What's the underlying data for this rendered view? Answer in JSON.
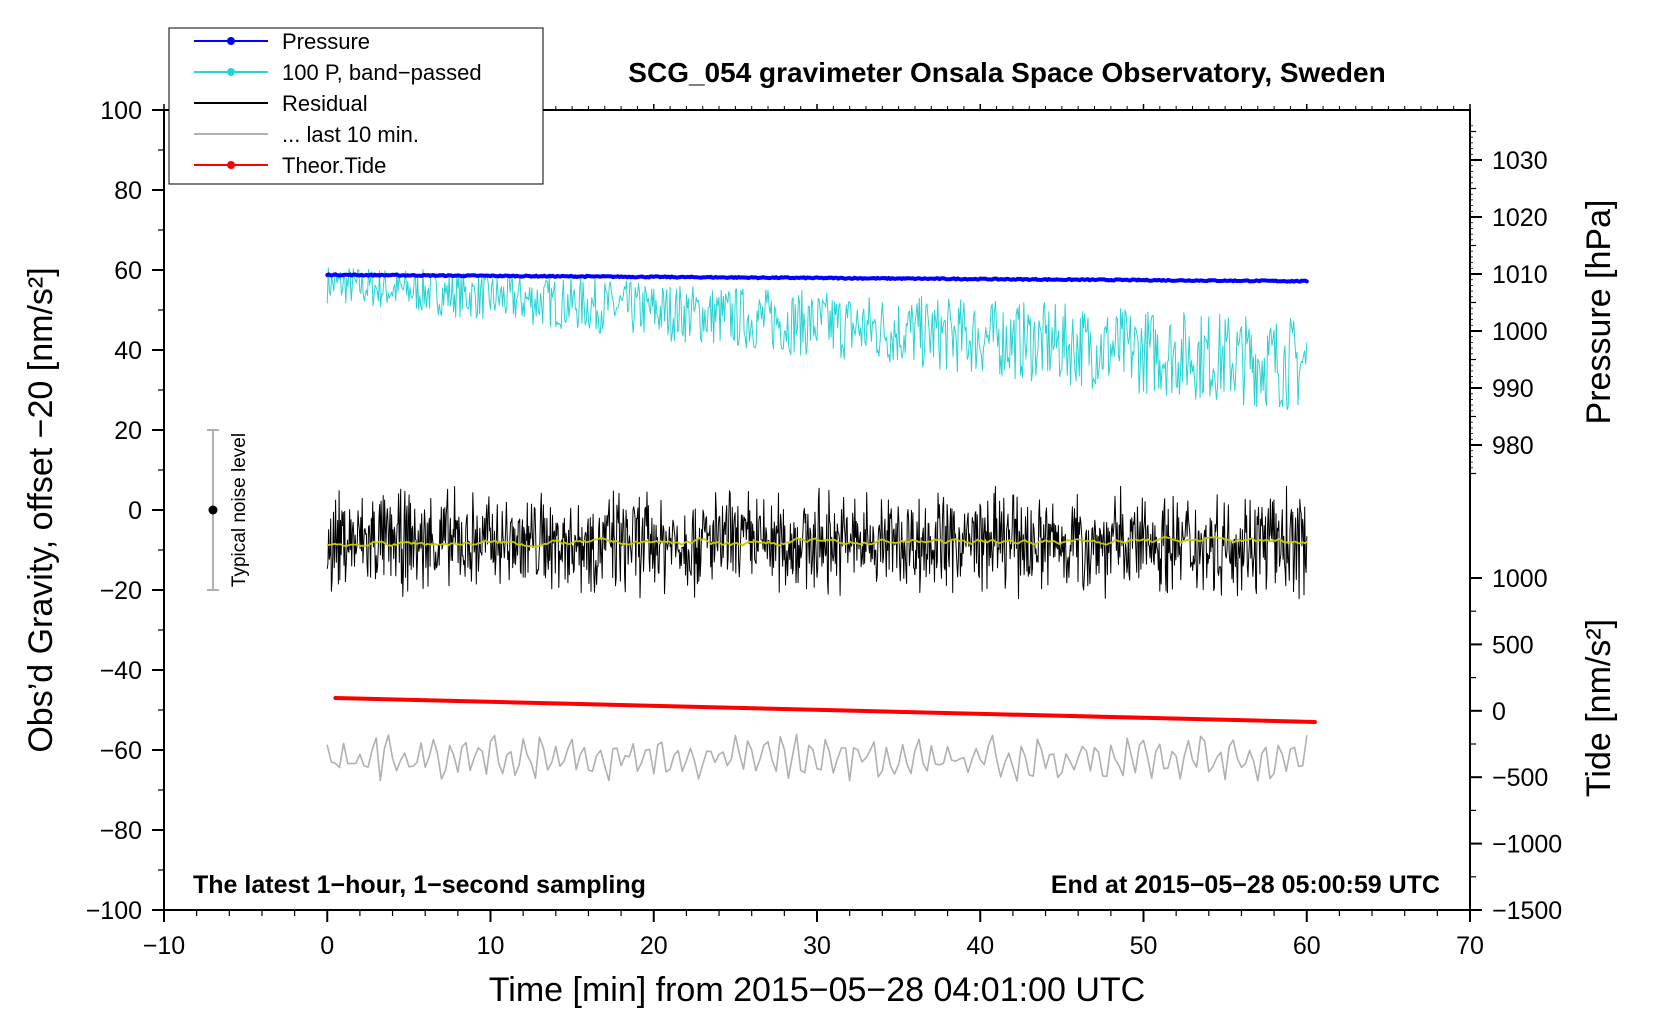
{
  "chart_data": {
    "type": "line",
    "title": "SCG_054 gravimeter Onsala Space Observatory, Sweden",
    "xlabel": "Time [min] from 2015−05−28 04:01:00 UTC",
    "ylabel_left": "Obs’d Gravity, offset −20 [nm/s²]",
    "ylabel_right_top": "Pressure [hPa]",
    "ylabel_right_bottom": "Tide [nm/s²]",
    "xlim": [
      -10,
      70
    ],
    "ylim_left": [
      -100,
      100
    ],
    "x_ticks": [
      -10,
      0,
      10,
      20,
      30,
      40,
      50,
      60,
      70
    ],
    "x_tick_labels": [
      "−10",
      "0",
      "10",
      "20",
      "30",
      "40",
      "50",
      "60",
      "70"
    ],
    "y_ticks_left": [
      100,
      80,
      60,
      40,
      20,
      0,
      -20,
      -40,
      -60,
      -80,
      -100
    ],
    "y_tick_labels_left": [
      "100",
      "80",
      "60",
      "40",
      "20",
      "0",
      "−20",
      "−40",
      "−60",
      "−80",
      "−100"
    ],
    "pressure_axis": {
      "ticks": [
        1030,
        1020,
        1010,
        1000,
        990,
        980
      ],
      "tick_labels": [
        "1030",
        "1020",
        "1010",
        "1000",
        "990",
        "980"
      ],
      "left_axis_reference": [
        [
          1010,
          59
        ],
        [
          990,
          30.5
        ]
      ]
    },
    "tide_axis": {
      "ticks": [
        1000,
        500,
        0,
        -500,
        -1000,
        -1500
      ],
      "tick_labels": [
        "1000",
        "500",
        "0",
        "−500",
        "−1000",
        "−1500"
      ],
      "left_axis_reference": [
        [
          1000,
          -17
        ],
        [
          -1500,
          -100
        ]
      ]
    },
    "legend": [
      {
        "label": "Pressure",
        "color": "#0000ff",
        "marker": true
      },
      {
        "label": "100 P, band−passed",
        "color": "#2ad3d3",
        "marker": true
      },
      {
        "label": "Residual",
        "color": "#000000",
        "marker": false
      },
      {
        "label": "... last 10 min.",
        "color": "#b0b0b0",
        "marker": false
      },
      {
        "label": "Theor.Tide",
        "color": "#ff0000",
        "marker": true
      }
    ],
    "series": [
      {
        "name": "Pressure",
        "color": "#0000ff",
        "x_start": 0,
        "x_end": 60,
        "y_start": 58.8,
        "y_end": 57.2,
        "noise": 0.3
      },
      {
        "name": "100 P, band−passed",
        "color": "#2ad3d3",
        "x_start": 0,
        "x_end": 60,
        "y_start": 58,
        "y_end": 40,
        "noise": 8
      },
      {
        "name": "Residual",
        "color": "#000000",
        "x_start": 0,
        "x_end": 60,
        "y_start": -8,
        "y_end": -8,
        "noise": 10
      },
      {
        "name": "Residual smoothed",
        "color": "#c8c800",
        "x_start": 0,
        "x_end": 60,
        "y_start": -8.5,
        "y_end": -7.5,
        "noise": 0.8
      },
      {
        "name": "... last 10 min.",
        "color": "#b0b0b0",
        "x_start": 0,
        "x_end": 60,
        "y_start": -62,
        "y_end": -62,
        "noise": 5
      },
      {
        "name": "Theor.Tide",
        "color": "#ff0000",
        "x_start": 0.5,
        "x_end": 60.5,
        "y_start": -47,
        "y_end": -53,
        "noise": 0
      }
    ],
    "noise_bar": {
      "x": -7,
      "y_center": 0,
      "y_low": -20,
      "y_high": 20,
      "label": "Typical noise level"
    },
    "footer_left": "The latest 1−hour, 1−second sampling",
    "footer_right": "End at 2015−05−28 05:00:59 UTC"
  },
  "colors": {
    "pressure": "#0000ff",
    "bandpassed": "#2ad3d3",
    "residual": "#000000",
    "residual_smooth": "#c8c800",
    "last10": "#b0b0b0",
    "tide": "#ff0000",
    "noise_bar": "#b0b0b0"
  }
}
